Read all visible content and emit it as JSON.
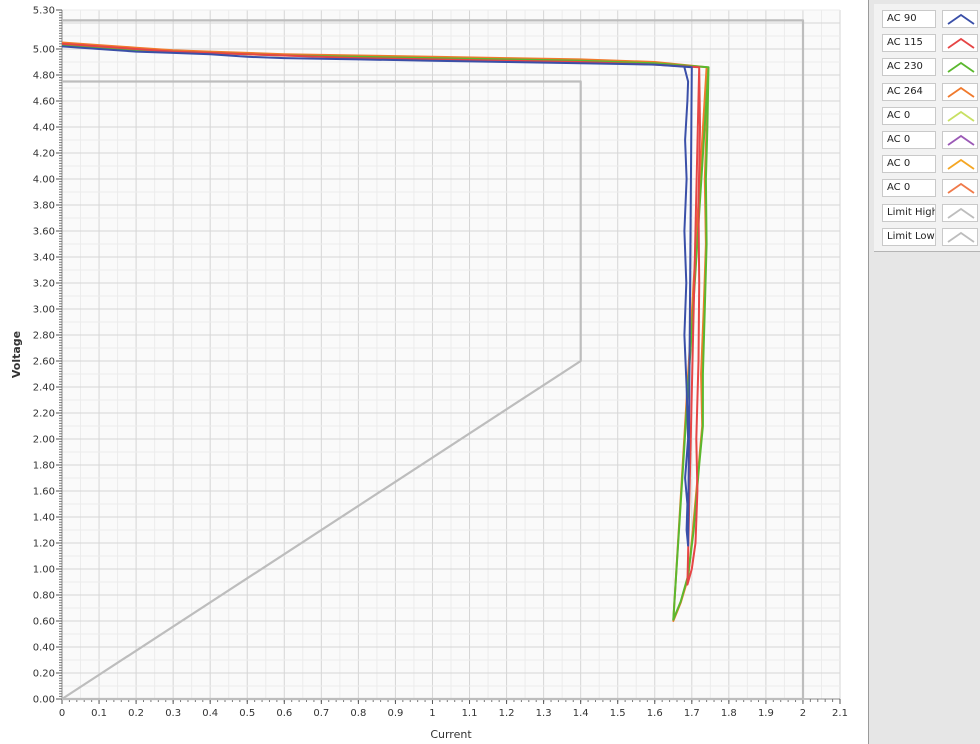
{
  "chart_data": {
    "type": "line",
    "title": "",
    "xlabel": "Current",
    "ylabel": "Voltage",
    "xlim": [
      0,
      2.1
    ],
    "ylim": [
      0,
      5.3
    ],
    "x_ticks": [
      "0",
      "0.1",
      "0.2",
      "0.3",
      "0.4",
      "0.5",
      "0.6",
      "0.7",
      "0.8",
      "0.9",
      "1",
      "1.1",
      "1.2",
      "1.3",
      "1.4",
      "1.5",
      "1.6",
      "1.7",
      "1.8",
      "1.9",
      "2",
      "2.1"
    ],
    "y_ticks": [
      "0.00",
      "0.20",
      "0.40",
      "0.60",
      "0.80",
      "1.00",
      "1.20",
      "1.40",
      "1.60",
      "1.80",
      "2.00",
      "2.20",
      "2.40",
      "2.60",
      "2.80",
      "3.00",
      "3.20",
      "3.40",
      "3.60",
      "3.80",
      "4.00",
      "4.20",
      "4.40",
      "4.60",
      "4.80",
      "5.00",
      "5.30"
    ],
    "grid": true,
    "legend_position": "right",
    "series": [
      {
        "name": "AC 90",
        "color": "#3a4fa8",
        "x": [
          0,
          0.1,
          0.2,
          0.3,
          0.4,
          0.5,
          0.6,
          0.8,
          1.0,
          1.2,
          1.4,
          1.6,
          1.7,
          1.69,
          1.686,
          1.688,
          1.682,
          1.69,
          1.686,
          1.68,
          1.685,
          1.68,
          1.686,
          1.682,
          1.688,
          1.69,
          1.68
        ],
        "y": [
          5.02,
          5.0,
          4.98,
          4.97,
          4.96,
          4.94,
          4.93,
          4.92,
          4.91,
          4.9,
          4.89,
          4.88,
          4.86,
          1.18,
          1.3,
          1.5,
          1.7,
          2.0,
          2.4,
          2.8,
          3.2,
          3.6,
          4.0,
          4.3,
          4.6,
          4.75,
          4.86
        ]
      },
      {
        "name": "AC 115",
        "color": "#e64545",
        "x": [
          0,
          0.1,
          0.2,
          0.3,
          0.4,
          0.5,
          0.6,
          0.8,
          1.0,
          1.2,
          1.4,
          1.6,
          1.72,
          1.688,
          1.7,
          1.71,
          1.715,
          1.712,
          1.718,
          1.72,
          1.718,
          1.722,
          1.72
        ],
        "y": [
          5.04,
          5.02,
          5.0,
          4.98,
          4.97,
          4.96,
          4.95,
          4.93,
          4.92,
          4.91,
          4.9,
          4.88,
          4.86,
          0.88,
          1.0,
          1.2,
          1.6,
          2.0,
          2.6,
          3.2,
          3.8,
          4.4,
          4.86
        ]
      },
      {
        "name": "AC 230",
        "color": "#5bb82e",
        "x": [
          0,
          0.1,
          0.2,
          0.3,
          0.4,
          0.5,
          0.6,
          0.8,
          1.0,
          1.2,
          1.4,
          1.6,
          1.745,
          1.65,
          1.67,
          1.69,
          1.705,
          1.72,
          1.73,
          1.73,
          1.735,
          1.74,
          1.738,
          1.742,
          1.745
        ],
        "y": [
          5.03,
          5.01,
          4.99,
          4.98,
          4.97,
          4.96,
          4.95,
          4.94,
          4.93,
          4.92,
          4.91,
          4.89,
          4.86,
          0.61,
          0.75,
          0.95,
          1.3,
          1.8,
          2.1,
          2.5,
          3.0,
          3.5,
          4.0,
          4.4,
          4.86
        ]
      },
      {
        "name": "AC 264",
        "color": "#f07a2d",
        "x": [
          0,
          0.1,
          0.2,
          0.3,
          0.4,
          0.5,
          0.6,
          0.8,
          1.0,
          1.2,
          1.4,
          1.6,
          1.74,
          1.65,
          1.67,
          1.69,
          1.702,
          1.718,
          1.728,
          1.725,
          1.732,
          1.738,
          1.735,
          1.74,
          1.74
        ],
        "y": [
          5.05,
          5.03,
          5.01,
          4.99,
          4.98,
          4.97,
          4.96,
          4.95,
          4.94,
          4.93,
          4.92,
          4.9,
          4.86,
          0.6,
          0.74,
          0.93,
          1.28,
          1.78,
          2.1,
          2.5,
          3.0,
          3.5,
          4.0,
          4.4,
          4.86
        ]
      },
      {
        "name": "AC 0",
        "color": "#c8e063",
        "x": [],
        "y": []
      },
      {
        "name": "AC 0",
        "color": "#9b59b6",
        "x": [],
        "y": []
      },
      {
        "name": "AC 0",
        "color": "#f5a623",
        "x": [],
        "y": []
      },
      {
        "name": "AC 0",
        "color": "#f07a4a",
        "x": [],
        "y": []
      },
      {
        "name": "Limit High",
        "color": "#bdbdbd",
        "x": [
          0,
          2,
          2,
          0
        ],
        "y": [
          5.22,
          5.22,
          0,
          0
        ]
      },
      {
        "name": "Limit Low",
        "color": "#bdbdbd",
        "x": [
          0,
          1.4,
          1.4,
          0
        ],
        "y": [
          4.75,
          4.75,
          2.6,
          0
        ]
      }
    ]
  }
}
